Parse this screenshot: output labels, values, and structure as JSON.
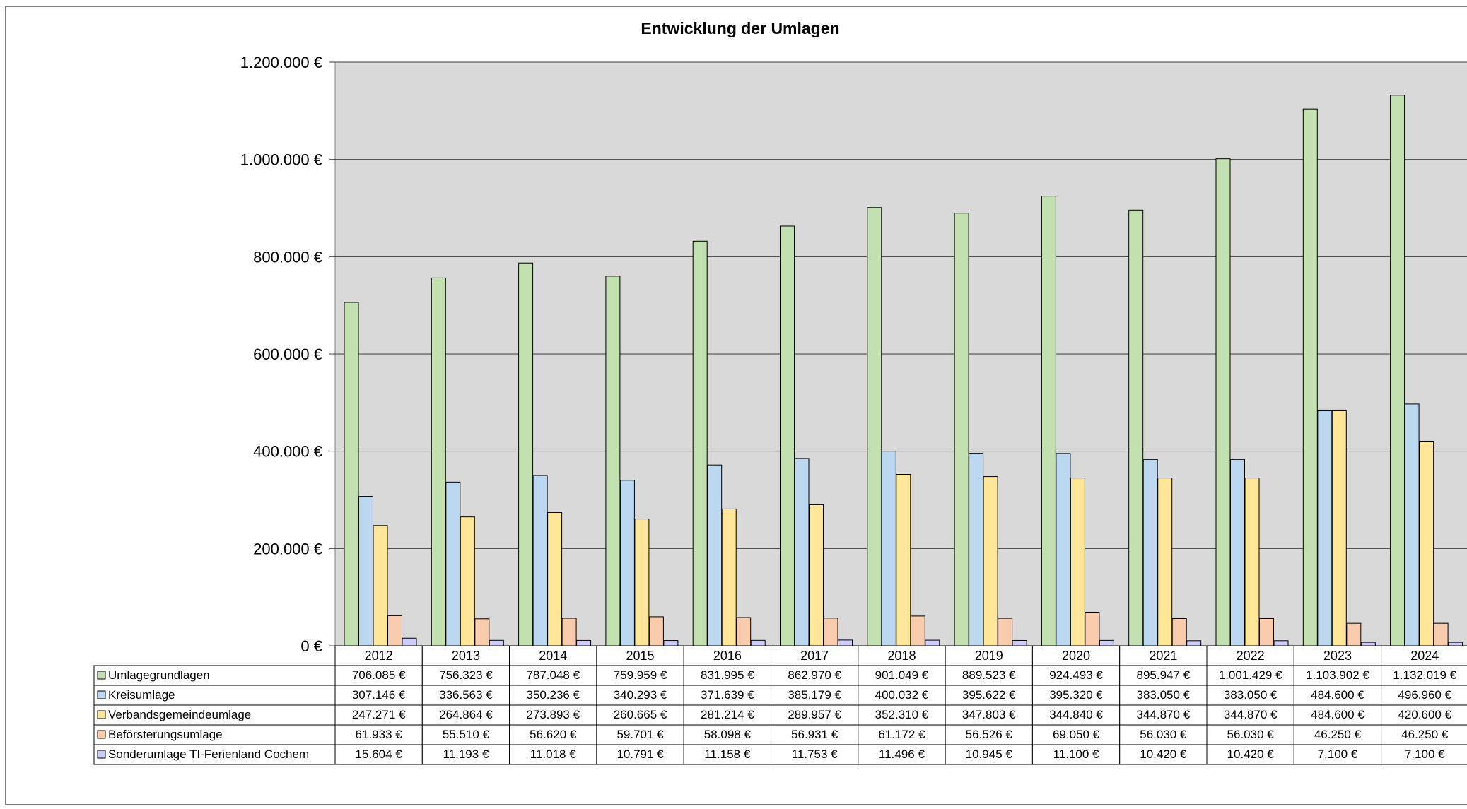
{
  "chart_data": {
    "type": "bar",
    "title": "Entwicklung der Umlagen",
    "xlabel": "",
    "ylabel": "",
    "ylim": [
      0,
      1200000
    ],
    "y_ticks": [
      {
        "value": 0,
        "label": "0 €"
      },
      {
        "value": 200000,
        "label": "200.000 €"
      },
      {
        "value": 400000,
        "label": "400.000 €"
      },
      {
        "value": 600000,
        "label": "600.000 €"
      },
      {
        "value": 800000,
        "label": "800.000 €"
      },
      {
        "value": 1000000,
        "label": "1.000.000 €"
      },
      {
        "value": 1200000,
        "label": "1.200.000 €"
      }
    ],
    "grid": true,
    "legend": "data-table",
    "categories": [
      "2012",
      "2013",
      "2014",
      "2015",
      "2016",
      "2017",
      "2018",
      "2019",
      "2020",
      "2021",
      "2022",
      "2023",
      "2024"
    ],
    "series": [
      {
        "name": "Umlagegrundlagen",
        "color": "#c3e0b0",
        "values": [
          706085,
          756323,
          787048,
          759959,
          831995,
          862970,
          901049,
          889523,
          924493,
          895947,
          1001429,
          1103902,
          1132019
        ],
        "labels": [
          "706.085 €",
          "756.323 €",
          "787.048 €",
          "759.959 €",
          "831.995 €",
          "862.970 €",
          "901.049 €",
          "889.523 €",
          "924.493 €",
          "895.947 €",
          "1.001.429 €",
          "1.103.902 €",
          "1.132.019 €"
        ]
      },
      {
        "name": "Kreisumlage",
        "color": "#bcd8f0",
        "values": [
          307146,
          336563,
          350236,
          340293,
          371639,
          385179,
          400032,
          395622,
          395320,
          383050,
          383050,
          484600,
          496960
        ],
        "labels": [
          "307.146 €",
          "336.563 €",
          "350.236 €",
          "340.293 €",
          "371.639 €",
          "385.179 €",
          "400.032 €",
          "395.622 €",
          "395.320 €",
          "383.050 €",
          "383.050 €",
          "484.600 €",
          "496.960 €"
        ]
      },
      {
        "name": "Verbandsgemeindeumlage",
        "color": "#ffe699",
        "values": [
          247271,
          264864,
          273893,
          260665,
          281214,
          289957,
          352310,
          347803,
          344840,
          344870,
          344870,
          484600,
          420600
        ],
        "labels": [
          "247.271 €",
          "264.864 €",
          "273.893 €",
          "260.665 €",
          "281.214 €",
          "289.957 €",
          "352.310 €",
          "347.803 €",
          "344.840 €",
          "344.870 €",
          "344.870 €",
          "484.600 €",
          "420.600 €"
        ]
      },
      {
        "name": "Beförsterungsumlage",
        "color": "#f8cbad",
        "values": [
          61933,
          55510,
          56620,
          59701,
          58098,
          56931,
          61172,
          56526,
          69050,
          56030,
          56030,
          46250,
          46250
        ],
        "labels": [
          "61.933 €",
          "55.510 €",
          "56.620 €",
          "59.701 €",
          "58.098 €",
          "56.931 €",
          "61.172 €",
          "56.526 €",
          "69.050 €",
          "56.030 €",
          "56.030 €",
          "46.250 €",
          "46.250 €"
        ]
      },
      {
        "name": "Sonderumlage TI-Ferienland Cochem",
        "color": "#ccccff",
        "values": [
          15604,
          11193,
          11018,
          10791,
          11158,
          11753,
          11496,
          10945,
          11100,
          10420,
          10420,
          7100,
          7100
        ],
        "labels": [
          "15.604 €",
          "11.193 €",
          "11.018 €",
          "10.791 €",
          "11.158 €",
          "11.753 €",
          "11.496 €",
          "10.945 €",
          "11.100 €",
          "10.420 €",
          "10.420 €",
          "7.100 €",
          "7.100 €"
        ]
      }
    ]
  }
}
